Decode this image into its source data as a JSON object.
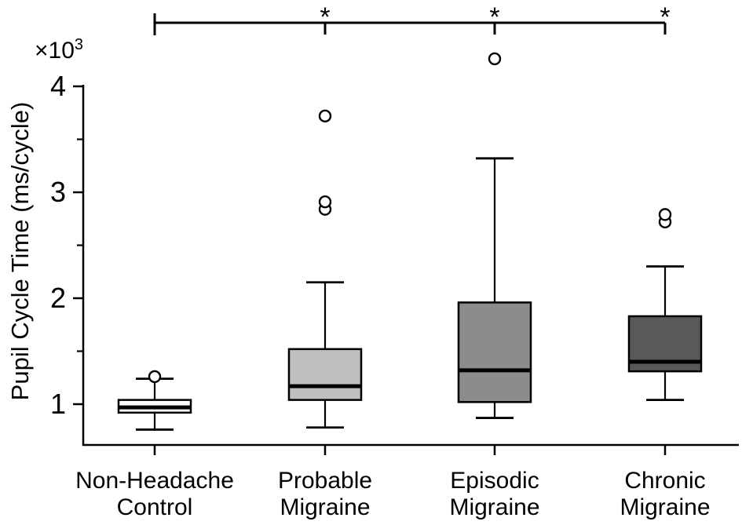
{
  "figure": {
    "ylabel": "Pupil Cycle Time (ms/cycle)",
    "offset_base": "×10",
    "offset_exponent": "3"
  },
  "chart_data": {
    "type": "box",
    "title": "",
    "ylabel": "Pupil Cycle Time (ms/cycle)",
    "y_unit_multiplier": "×10³",
    "values_unit": "×10³ ms/cycle",
    "ylim": [
      0.615,
      4.015
    ],
    "yticks_major": [
      1,
      2,
      3,
      4
    ],
    "ytick_labels": [
      "1",
      "2",
      "3",
      "4"
    ],
    "yticks_minor": [
      1.5,
      2.5,
      3.5
    ],
    "grid": false,
    "legend": "none",
    "line_color": "#000000",
    "categories": [
      {
        "name": "non-headache-control",
        "label_lines": [
          "Non-Headache",
          "Control"
        ]
      },
      {
        "name": "probable-migraine",
        "label_lines": [
          "Probable",
          "Migraine"
        ]
      },
      {
        "name": "episodic-migraine",
        "label_lines": [
          "Episodic",
          "Migraine"
        ]
      },
      {
        "name": "chronic-migraine",
        "label_lines": [
          "Chronic",
          "Migraine"
        ]
      }
    ],
    "series": [
      {
        "category": "Non-Headache Control",
        "fill": "#ffffff",
        "whisker_low": 0.76,
        "q1": 0.92,
        "median": 0.97,
        "q3": 1.04,
        "whisker_high": 1.24,
        "outliers": [
          1.26
        ]
      },
      {
        "category": "Probable Migraine",
        "fill": "#bfbfbf",
        "whisker_low": 0.78,
        "q1": 1.04,
        "median": 1.17,
        "q3": 1.52,
        "whisker_high": 2.15,
        "outliers": [
          2.84,
          2.91,
          3.72
        ]
      },
      {
        "category": "Episodic Migraine",
        "fill": "#8c8c8c",
        "whisker_low": 0.87,
        "q1": 1.02,
        "median": 1.32,
        "q3": 1.96,
        "whisker_high": 3.32,
        "outliers": [
          4.26
        ]
      },
      {
        "category": "Chronic Migraine",
        "fill": "#595959",
        "whisker_low": 1.04,
        "q1": 1.31,
        "median": 1.4,
        "q3": 1.83,
        "whisker_high": 2.3,
        "outliers": [
          2.72,
          2.79
        ]
      }
    ],
    "significance": {
      "marker": "*",
      "bracket_start_category": 0,
      "bracket_end_category": 3,
      "marked_categories": [
        1,
        2,
        3
      ]
    }
  }
}
